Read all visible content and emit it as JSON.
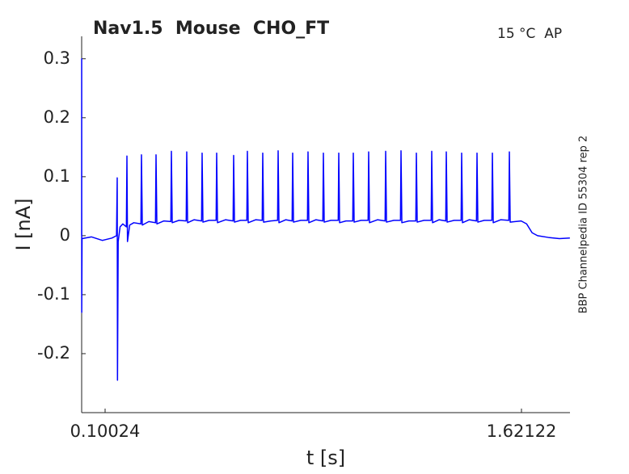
{
  "chart_data": {
    "type": "line",
    "title": "Nav1.5  Mouse  CHO_FT",
    "annotations": [
      "15 °C  AP",
      "BBP Channelpedia ID 55304 rep 2"
    ],
    "xlabel": "t [s]",
    "ylabel": "I [nA]",
    "xlim": [
      0.0146,
      1.7984
    ],
    "ylim": [
      -0.3,
      0.338
    ],
    "xticks": [
      0.10024,
      1.62122
    ],
    "yticks": [
      -0.2,
      -0.1,
      0,
      0.1,
      0.2,
      0.3
    ],
    "x": [
      0.0146,
      0.0147,
      0.0149,
      0.016,
      0.05,
      0.09,
      0.125,
      0.142,
      0.1445,
      0.1455,
      0.148,
      0.155,
      0.165,
      0.178,
      0.18,
      0.182,
      0.19,
      0.205,
      0.2311,
      0.2331,
      0.2361,
      0.26,
      0.2843,
      0.2863,
      0.2893,
      0.315,
      0.3404,
      0.3424,
      0.3454,
      0.37,
      0.3965,
      0.3985,
      0.4015,
      0.425,
      0.4526,
      0.4546,
      0.4576,
      0.48,
      0.5058,
      0.5078,
      0.5108,
      0.54,
      0.5678,
      0.5698,
      0.5728,
      0.595,
      0.618,
      0.62,
      0.623,
      0.65,
      0.6741,
      0.6761,
      0.6791,
      0.705,
      0.7303,
      0.7323,
      0.7353,
      0.76,
      0.7834,
      0.7854,
      0.7884,
      0.815,
      0.8395,
      0.8415,
      0.8445,
      0.87,
      0.8956,
      0.8976,
      0.9006,
      0.925,
      0.9518,
      0.9538,
      0.9568,
      0.98,
      1.0049,
      1.0069,
      1.0099,
      1.035,
      1.061,
      1.063,
      1.066,
      1.095,
      1.1231,
      1.1251,
      1.1281,
      1.155,
      1.1792,
      1.1812,
      1.1842,
      1.21,
      1.2353,
      1.2373,
      1.2403,
      1.265,
      1.2914,
      1.2934,
      1.2964,
      1.32,
      1.3446,
      1.3466,
      1.3496,
      1.375,
      1.4007,
      1.4027,
      1.4057,
      1.43,
      1.4568,
      1.4588,
      1.4618,
      1.485,
      1.513,
      1.515,
      1.518,
      1.545,
      1.575,
      1.577,
      1.58,
      1.62,
      1.64,
      1.66,
      1.68,
      1.72,
      1.76,
      1.798
    ],
    "series": [
      {
        "color": "#0000ff",
        "values": [
          0,
          0.3,
          -0.13,
          -0.005,
          -0.002,
          -0.008,
          -0.004,
          0,
          0.098,
          -0.245,
          -0.01,
          0.015,
          0.02,
          0.015,
          0.135,
          -0.01,
          0.018,
          0.022,
          0.02,
          0.137,
          0.018,
          0.024,
          0.022,
          0.137,
          0.02,
          0.025,
          0.024,
          0.143,
          0.022,
          0.026,
          0.025,
          0.142,
          0.022,
          0.027,
          0.025,
          0.14,
          0.023,
          0.026,
          0.026,
          0.14,
          0.022,
          0.027,
          0.025,
          0.136,
          0.023,
          0.026,
          0.026,
          0.143,
          0.022,
          0.027,
          0.026,
          0.14,
          0.023,
          0.025,
          0.026,
          0.144,
          0.022,
          0.027,
          0.025,
          0.14,
          0.023,
          0.026,
          0.026,
          0.142,
          0.022,
          0.027,
          0.025,
          0.14,
          0.023,
          0.026,
          0.026,
          0.14,
          0.022,
          0.025,
          0.025,
          0.14,
          0.023,
          0.026,
          0.026,
          0.142,
          0.022,
          0.027,
          0.025,
          0.143,
          0.023,
          0.026,
          0.026,
          0.144,
          0.022,
          0.025,
          0.025,
          0.14,
          0.023,
          0.026,
          0.026,
          0.143,
          0.022,
          0.027,
          0.025,
          0.142,
          0.023,
          0.026,
          0.026,
          0.14,
          0.022,
          0.027,
          0.025,
          0.14,
          0.023,
          0.026,
          0.026,
          0.14,
          0.022,
          0.027,
          0.026,
          0.142,
          0.023,
          0.025,
          0.02,
          0.005,
          0,
          -0.003,
          -0.005,
          -0.004
        ]
      }
    ]
  }
}
